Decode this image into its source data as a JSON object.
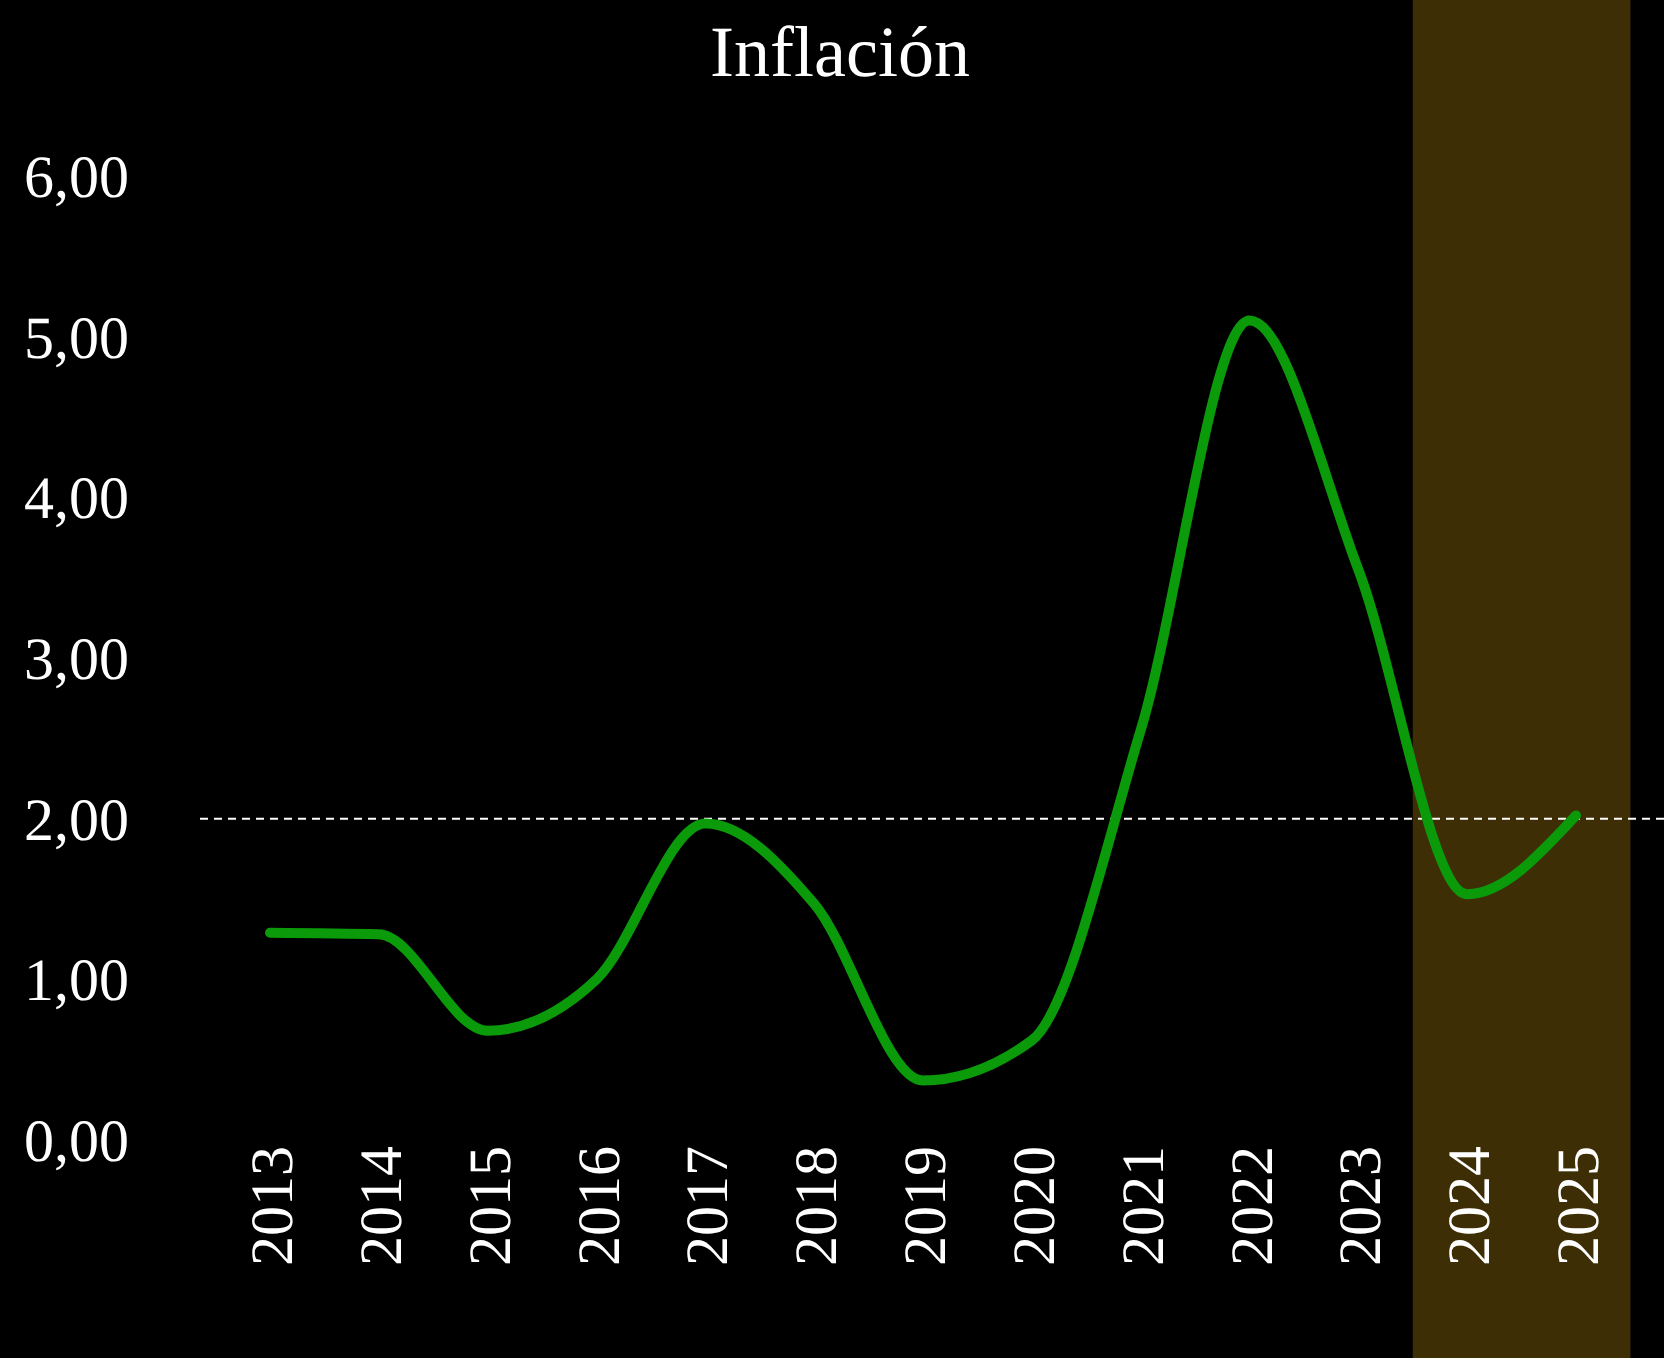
{
  "chart_data": {
    "type": "line",
    "title": "Inflación",
    "categories": [
      "2013",
      "2014",
      "2015",
      "2016",
      "2017",
      "2018",
      "2019",
      "2020",
      "2021",
      "2022",
      "2023",
      "2024",
      "2025"
    ],
    "series": [
      {
        "color": "#0a9a0a",
        "values": [
          1.29,
          1.28,
          0.68,
          1.0,
          1.97,
          1.47,
          0.37,
          0.62,
          2.55,
          5.1,
          3.55,
          1.53,
          2.02
        ]
      }
    ],
    "ylim": [
      0,
      6
    ],
    "yticks": [
      {
        "value": 0,
        "label": "0,00"
      },
      {
        "value": 1,
        "label": "1,00"
      },
      {
        "value": 2,
        "label": "2,00"
      },
      {
        "value": 3,
        "label": "3,00"
      },
      {
        "value": 4,
        "label": "4,00"
      },
      {
        "value": 5,
        "label": "5,00"
      },
      {
        "value": 6,
        "label": "6,00"
      }
    ],
    "ref_lines": [
      {
        "axis": "y",
        "value": 2,
        "color": "#ffffff",
        "line_style": "dashed"
      }
    ],
    "bands": [
      {
        "axis": "x",
        "from": "2024",
        "to": "2025",
        "color": "#3d2e05"
      }
    ],
    "grid": false,
    "marker": "none",
    "line_style": "solid"
  }
}
